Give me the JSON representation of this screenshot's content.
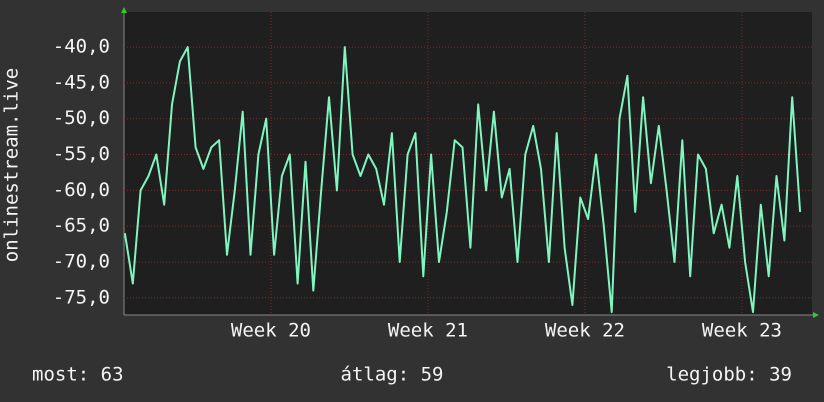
{
  "chart_data": {
    "type": "line",
    "ylabel": "onlinestream.live",
    "x": [
      19.07,
      19.12,
      19.17,
      19.22,
      19.27,
      19.32,
      19.37,
      19.42,
      19.47,
      19.52,
      19.57,
      19.62,
      19.67,
      19.72,
      19.77,
      19.82,
      19.87,
      19.92,
      19.97,
      20.02,
      20.07,
      20.12,
      20.17,
      20.22,
      20.27,
      20.32,
      20.37,
      20.42,
      20.47,
      20.52,
      20.57,
      20.62,
      20.67,
      20.72,
      20.77,
      20.82,
      20.87,
      20.92,
      20.97,
      21.02,
      21.07,
      21.12,
      21.17,
      21.22,
      21.27,
      21.32,
      21.37,
      21.42,
      21.47,
      21.52,
      21.57,
      21.62,
      21.67,
      21.72,
      21.77,
      21.82,
      21.87,
      21.92,
      21.97,
      22.02,
      22.07,
      22.12,
      22.17,
      22.22,
      22.27,
      22.32,
      22.37,
      22.42,
      22.47,
      22.52,
      22.57,
      22.62,
      22.67,
      22.72,
      22.77,
      22.82,
      22.87,
      22.92,
      22.97,
      23.02,
      23.07,
      23.12,
      23.17,
      23.22,
      23.27,
      23.32,
      23.37
    ],
    "values": [
      -66,
      -73,
      -60,
      -58,
      -55,
      -62,
      -48,
      -42,
      -40,
      -54,
      -57,
      -54,
      -53,
      -69,
      -60,
      -49,
      -69,
      -55,
      -50,
      -69,
      -58,
      -55,
      -73,
      -56,
      -74,
      -60,
      -47,
      -60,
      -40,
      -55,
      -58,
      -55,
      -57,
      -62,
      -52,
      -70,
      -55,
      -52,
      -72,
      -55,
      -70,
      -63,
      -53,
      -54,
      -68,
      -48,
      -60,
      -49,
      -61,
      -57,
      -70,
      -55,
      -51,
      -57,
      -70,
      -52,
      -68,
      -76,
      -61,
      -64,
      -55,
      -65,
      -77,
      -50,
      -44,
      -63,
      -47,
      -59,
      -51,
      -60,
      -70,
      -53,
      -72,
      -55,
      -57,
      -66,
      -62,
      -68,
      -58,
      -70,
      -77,
      -62,
      -72,
      -58,
      -67,
      -47,
      -63
    ],
    "color": "#7ff5bf",
    "ylim": [
      -77.4,
      -35.1
    ],
    "yticks": [
      {
        "value": -40,
        "label": "-40,0"
      },
      {
        "value": -45,
        "label": "-45,0"
      },
      {
        "value": -50,
        "label": "-50,0"
      },
      {
        "value": -55,
        "label": "-55,0"
      },
      {
        "value": -60,
        "label": "-60,0"
      },
      {
        "value": -65,
        "label": "-65,0"
      },
      {
        "value": -70,
        "label": "-70,0"
      },
      {
        "value": -75,
        "label": "-75,0"
      }
    ],
    "xlim": [
      19.064,
      23.446
    ],
    "xticks": [
      {
        "value": 20,
        "label": "Week 20"
      },
      {
        "value": 21,
        "label": "Week 21"
      },
      {
        "value": 22,
        "label": "Week 22"
      },
      {
        "value": 23,
        "label": "Week 23"
      }
    ],
    "grid": true,
    "footer": [
      "most: 63",
      "átlag: 59",
      "legjobb: 39"
    ]
  }
}
